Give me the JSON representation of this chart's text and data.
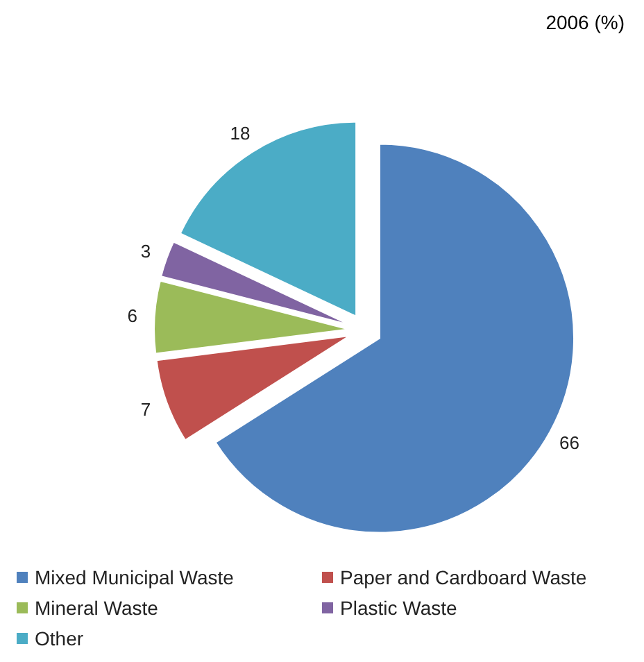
{
  "chart_data": {
    "type": "pie",
    "title": "2006 (%)",
    "categories": [
      "Mixed Municipal Waste",
      "Paper and Cardboard Waste",
      "Mineral Waste",
      "Plastic Waste",
      "Other"
    ],
    "values": [
      66,
      7,
      6,
      3,
      18
    ],
    "colors": [
      "#4f81bd",
      "#c0504d",
      "#9bbb59",
      "#8064a2",
      "#4bacc6"
    ],
    "data_labels": true,
    "legend": "bottom"
  }
}
